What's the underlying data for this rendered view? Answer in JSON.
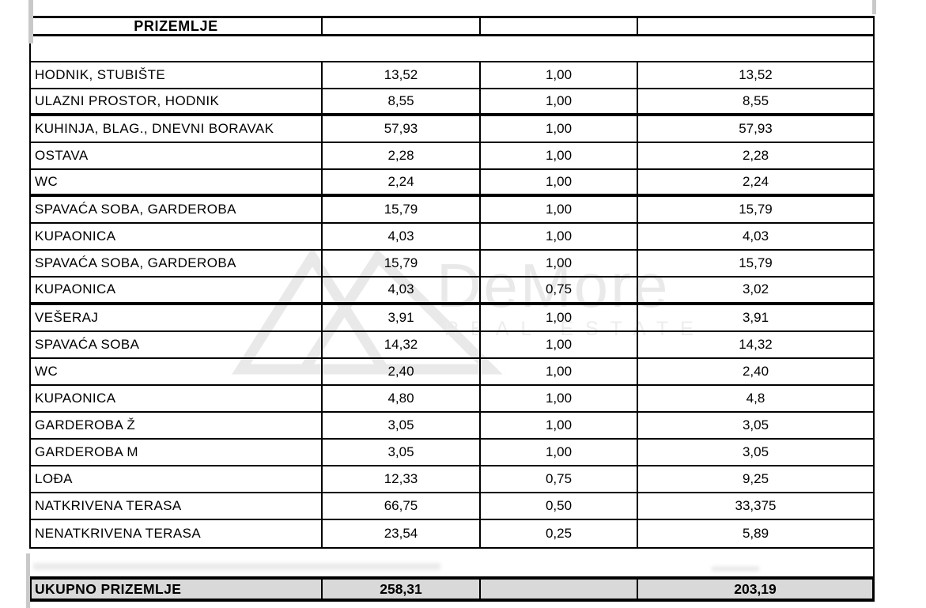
{
  "header": {
    "title": "PRIZEMLJE"
  },
  "table": {
    "rows": [
      {
        "name": "HODNIK, STUBIŠTE",
        "area": "13,52",
        "coef": "1,00",
        "result": "13,52"
      },
      {
        "name": "ULAZNI PROSTOR, HODNIK",
        "area": "8,55",
        "coef": "1,00",
        "result": "8,55"
      },
      {
        "name": "KUHINJA, BLAG., DNEVNI BORAVAK",
        "area": "57,93",
        "coef": "1,00",
        "result": "57,93"
      },
      {
        "name": "OSTAVA",
        "area": "2,28",
        "coef": "1,00",
        "result": "2,28"
      },
      {
        "name": "WC",
        "area": "2,24",
        "coef": "1,00",
        "result": "2,24"
      },
      {
        "name": "SPAVAĆA SOBA, GARDEROBA",
        "area": "15,79",
        "coef": "1,00",
        "result": "15,79"
      },
      {
        "name": "KUPAONICA",
        "area": "4,03",
        "coef": "1,00",
        "result": "4,03"
      },
      {
        "name": "SPAVAĆA SOBA, GARDEROBA",
        "area": "15,79",
        "coef": "1,00",
        "result": "15,79"
      },
      {
        "name": "KUPAONICA",
        "area": "4,03",
        "coef": "0,75",
        "result": "3,02"
      },
      {
        "name": "VEŠERAJ",
        "area": "3,91",
        "coef": "1,00",
        "result": "3,91"
      },
      {
        "name": "SPAVAĆA SOBA",
        "area": "14,32",
        "coef": "1,00",
        "result": "14,32"
      },
      {
        "name": "WC",
        "area": "2,40",
        "coef": "1,00",
        "result": "2,40"
      },
      {
        "name": "KUPAONICA",
        "area": "4,80",
        "coef": "1,00",
        "result": "4,8"
      },
      {
        "name": "GARDEROBA Ž",
        "area": "3,05",
        "coef": "1,00",
        "result": "3,05"
      },
      {
        "name": "GARDEROBA M",
        "area": "3,05",
        "coef": "1,00",
        "result": "3,05"
      },
      {
        "name": "LOĐA",
        "area": "12,33",
        "coef": "0,75",
        "result": "9,25"
      },
      {
        "name": "NATKRIVENA TERASA",
        "area": "66,75",
        "coef": "0,50",
        "result": "33,375"
      },
      {
        "name": "NENATKRIVENA TERASA",
        "area": "23,54",
        "coef": "0,25",
        "result": "5,89"
      }
    ]
  },
  "total": {
    "label": "UKUPNO PRIZEMLJE",
    "area": "258,31",
    "coef": "",
    "result": "203,19"
  },
  "watermark": {
    "brand": "DeMore",
    "tagline": "REAL ESTATE"
  },
  "colors": {
    "table_border": "#000000",
    "total_row_bg": "#d9d9d9",
    "watermark_gray": "#e9e9e9"
  }
}
